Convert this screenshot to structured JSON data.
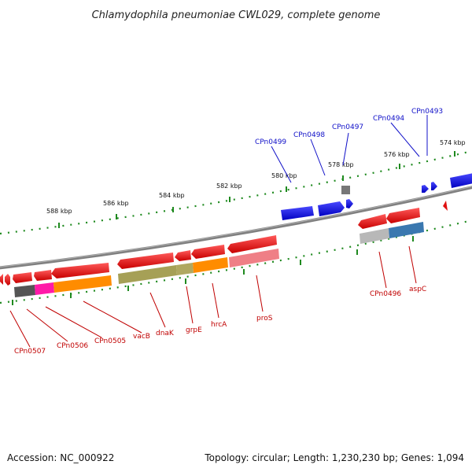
{
  "title": "Chlamydophila pneumoniae CWL029, complete genome",
  "footer": {
    "accession": "Accession: NC_000922",
    "topology": "Topology: circular; Length: 1,230,230 bp; Genes: 1,094"
  },
  "kbp_ticks": [
    "574 kbp",
    "576 kbp",
    "578 kbp",
    "580 kbp",
    "582 kbp",
    "584 kbp",
    "586 kbp",
    "588 kbp"
  ],
  "top_gene_labels": [
    "CPn0493",
    "CPn0494",
    "CPn0497",
    "CPn0498",
    "CPn0499"
  ],
  "bottom_gene_labels": [
    "CPn0496",
    "aspC",
    "proS",
    "hrcA",
    "grpE",
    "dnaK",
    "vacB",
    "CPn0505",
    "CPn0506",
    "CPn0507"
  ],
  "colors": {
    "backbone": "#808080",
    "forward_gene": "#1515e6",
    "reverse_gene": "#e01010",
    "tick": "#1f8a1f",
    "label_blue": "#1010c8",
    "label_red": "#c00000"
  }
}
